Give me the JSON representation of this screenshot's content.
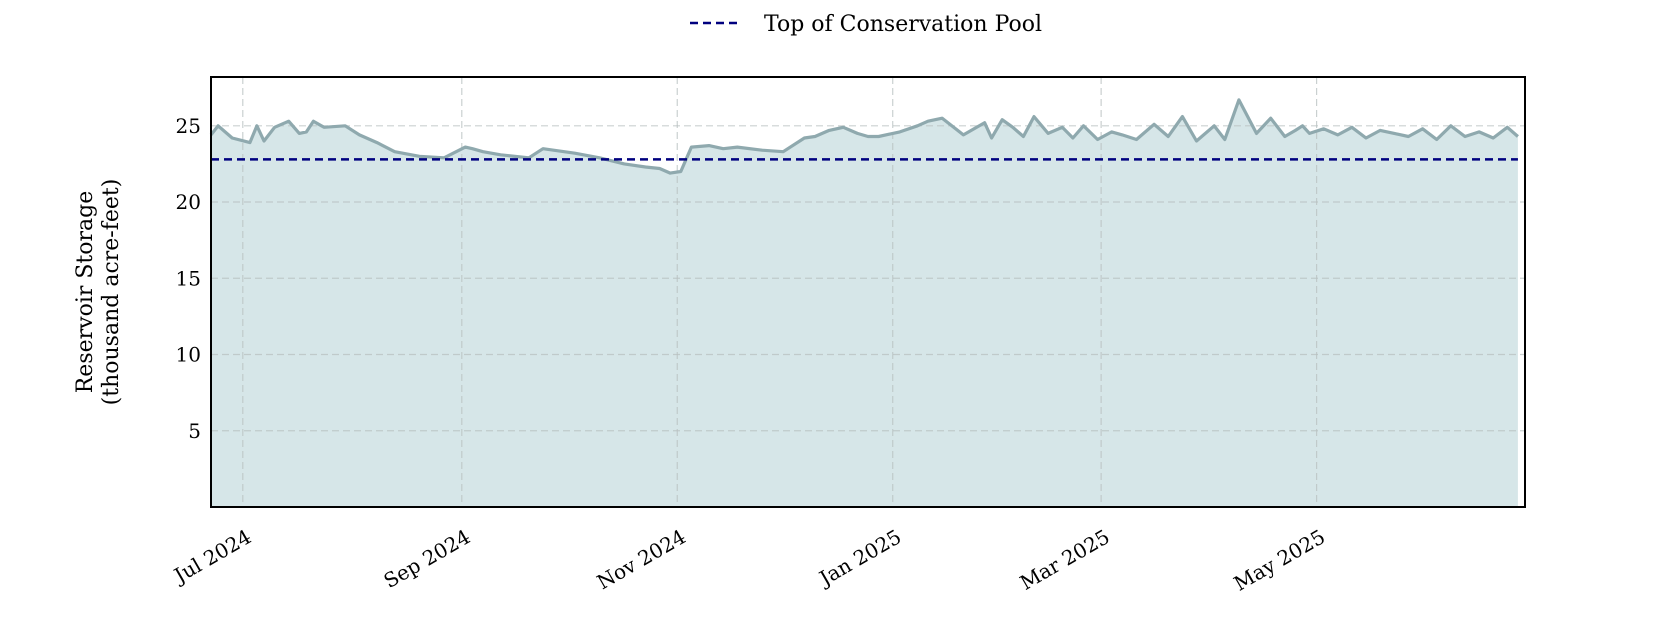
{
  "chart_data": {
    "type": "area",
    "xlabel": "",
    "ylabel": [
      "Reservoir Storage",
      "(thousand acre-feet)"
    ],
    "xlim": [
      "2024-06-22",
      "2025-06-29"
    ],
    "ylim": [
      0,
      28.2
    ],
    "x_ticks": [
      {
        "date": "2024-07-01",
        "label": "Jul 2024"
      },
      {
        "date": "2024-09-01",
        "label": "Sep 2024"
      },
      {
        "date": "2024-11-01",
        "label": "Nov 2024"
      },
      {
        "date": "2025-01-01",
        "label": "Jan 2025"
      },
      {
        "date": "2025-03-01",
        "label": "Mar 2025"
      },
      {
        "date": "2025-05-01",
        "label": "May 2025"
      }
    ],
    "y_ticks": [
      5,
      10,
      15,
      20,
      25
    ],
    "grid": true,
    "legend_position": "top-center",
    "series": [
      {
        "name": "",
        "style": "filled-line",
        "line_color": "#8fa9ae",
        "fill_color": "#d6e6e8",
        "x": [
          "2024-06-22",
          "2024-06-24",
          "2024-06-28",
          "2024-07-03",
          "2024-07-05",
          "2024-07-07",
          "2024-07-10",
          "2024-07-14",
          "2024-07-17",
          "2024-07-19",
          "2024-07-21",
          "2024-07-24",
          "2024-07-30",
          "2024-08-03",
          "2024-08-08",
          "2024-08-13",
          "2024-08-20",
          "2024-08-27",
          "2024-09-02",
          "2024-09-04",
          "2024-09-07",
          "2024-09-12",
          "2024-09-20",
          "2024-09-24",
          "2024-09-27",
          "2024-10-03",
          "2024-10-10",
          "2024-10-17",
          "2024-10-23",
          "2024-10-27",
          "2024-10-30",
          "2024-11-02",
          "2024-11-05",
          "2024-11-10",
          "2024-11-14",
          "2024-11-18",
          "2024-11-25",
          "2024-12-01",
          "2024-12-07",
          "2024-12-10",
          "2024-12-14",
          "2024-12-18",
          "2024-12-22",
          "2024-12-25",
          "2024-12-28",
          "2025-01-03",
          "2025-01-08",
          "2025-01-11",
          "2025-01-15",
          "2025-01-21",
          "2025-01-27",
          "2025-01-29",
          "2025-02-01",
          "2025-02-04",
          "2025-02-07",
          "2025-02-10",
          "2025-02-14",
          "2025-02-18",
          "2025-02-21",
          "2025-02-24",
          "2025-02-28",
          "2025-03-04",
          "2025-03-07",
          "2025-03-11",
          "2025-03-16",
          "2025-03-20",
          "2025-03-24",
          "2025-03-28",
          "2025-04-02",
          "2025-04-05",
          "2025-04-09",
          "2025-04-14",
          "2025-04-18",
          "2025-04-22",
          "2025-04-25",
          "2025-04-27",
          "2025-04-29",
          "2025-05-03",
          "2025-05-07",
          "2025-05-11",
          "2025-05-15",
          "2025-05-19",
          "2025-05-23",
          "2025-05-27",
          "2025-05-31",
          "2025-06-04",
          "2025-06-08",
          "2025-06-12",
          "2025-06-16",
          "2025-06-20",
          "2025-06-24",
          "2025-06-27"
        ],
        "values": [
          24.4,
          25.0,
          24.2,
          23.9,
          25.0,
          24.0,
          24.9,
          25.3,
          24.5,
          24.6,
          25.3,
          24.9,
          25.0,
          24.4,
          23.9,
          23.3,
          23.0,
          22.9,
          23.6,
          23.5,
          23.3,
          23.1,
          22.9,
          23.5,
          23.4,
          23.2,
          22.9,
          22.5,
          22.3,
          22.2,
          21.9,
          22.0,
          23.6,
          23.7,
          23.5,
          23.6,
          23.4,
          23.3,
          24.2,
          24.3,
          24.7,
          24.9,
          24.5,
          24.3,
          24.3,
          24.6,
          25.0,
          25.3,
          25.5,
          24.4,
          25.2,
          24.2,
          25.4,
          24.9,
          24.3,
          25.6,
          24.5,
          24.9,
          24.2,
          25.0,
          24.1,
          24.6,
          24.4,
          24.1,
          25.1,
          24.3,
          25.6,
          24.0,
          25.0,
          24.1,
          26.7,
          24.5,
          25.5,
          24.3,
          24.7,
          25.0,
          24.5,
          24.8,
          24.4,
          24.9,
          24.2,
          24.7,
          24.5,
          24.3,
          24.8,
          24.1,
          25.0,
          24.3,
          24.6,
          24.2,
          24.9,
          24.3
        ]
      },
      {
        "name": "Top of Conservation Pool",
        "style": "dashed-line",
        "color": "#00007f",
        "x": [
          "2024-06-22",
          "2025-06-27"
        ],
        "values": [
          22.8,
          22.8
        ]
      }
    ]
  }
}
